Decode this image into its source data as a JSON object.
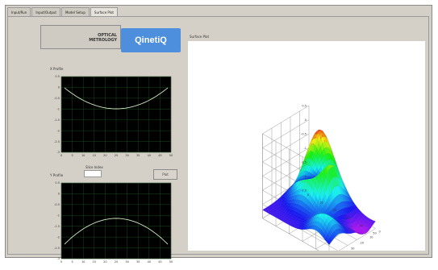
{
  "tabs": [
    {
      "label": "Input/Run"
    },
    {
      "label": "Input/Output"
    },
    {
      "label": "Model Setup"
    },
    {
      "label": "Surface Plot"
    }
  ],
  "header": {
    "title": "OPTICAL\nMETROLOGY",
    "logo_text": "QinetiQ",
    "logo_color": "#4e8fdd"
  },
  "plot3d": {
    "title": "Surface Plot",
    "z_ticks": [
      "0.5",
      "0",
      "-0.5",
      "-1",
      "-1.5",
      "-2",
      "-2.5"
    ],
    "x_ticks": [
      "0",
      "10",
      "20",
      "30",
      "40",
      "50"
    ],
    "y_ticks": [
      "0",
      "10",
      "20",
      "30",
      "40",
      "50"
    ]
  },
  "graph_top": {
    "label": "X Profile",
    "y_ticks": [
      "0.5",
      "0",
      "-0.5",
      "-1",
      "-1.5",
      "-2",
      "-2.5",
      "-3"
    ],
    "x_ticks": [
      "0",
      "5",
      "10",
      "15",
      "20",
      "25",
      "30",
      "35",
      "40",
      "45",
      "50"
    ]
  },
  "mid": {
    "label": "Slice Index",
    "field_value": "",
    "button_label": "Plot"
  },
  "graph_bottom": {
    "label": "Y Profile",
    "y_ticks": [
      "0.5",
      "0",
      "-0.5",
      "-1",
      "-1.5",
      "-2",
      "-2.5",
      "-3"
    ],
    "x_ticks": [
      "0",
      "5",
      "10",
      "15",
      "20",
      "25",
      "30",
      "35",
      "40",
      "45",
      "50"
    ]
  }
}
